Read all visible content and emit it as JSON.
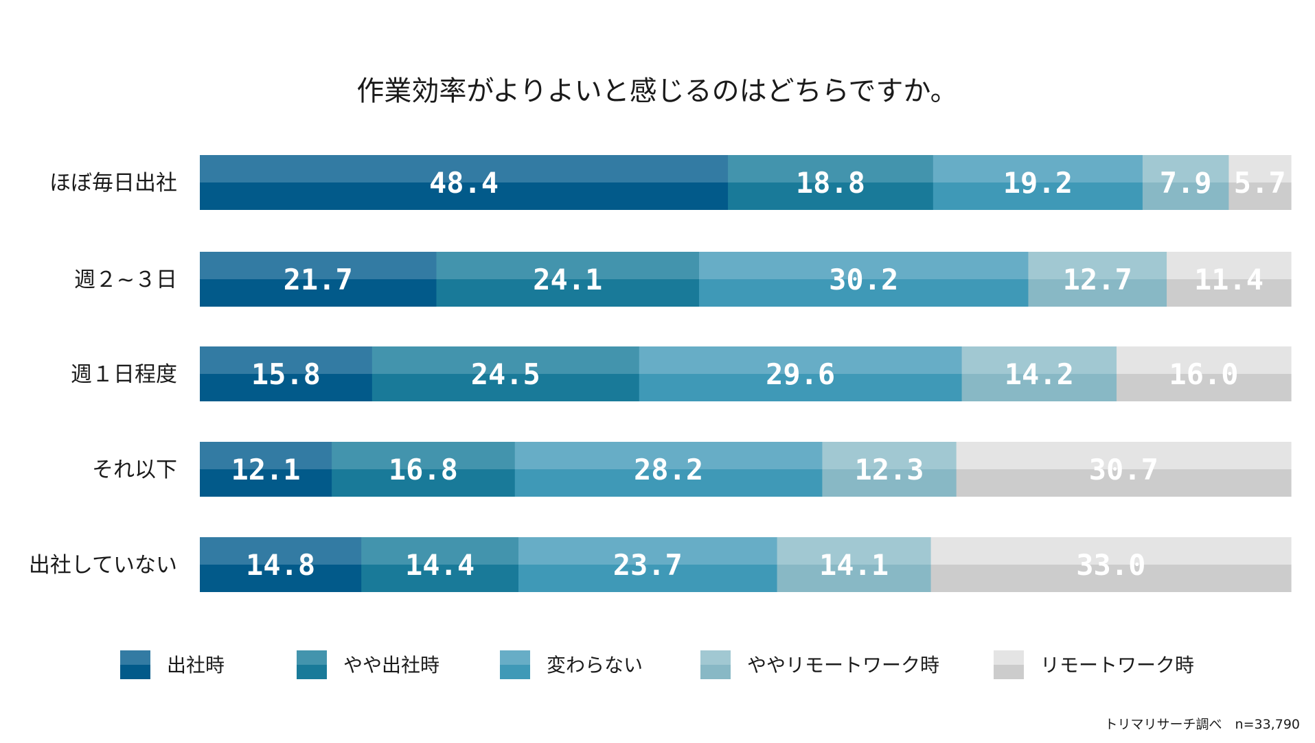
{
  "chart_data": {
    "type": "bar",
    "orientation": "horizontal",
    "stacked": true,
    "title": "作業効率がよりよいと感じるのはどちらですか。",
    "categories": [
      "ほぼ毎日出社",
      "週２~３日",
      "週１日程度",
      "それ以下",
      "出社していない"
    ],
    "series": [
      {
        "name": "出社時",
        "color_top": "#337ba3",
        "color_bottom": "#025a8a",
        "values": [
          48.4,
          21.7,
          15.8,
          12.1,
          14.8
        ]
      },
      {
        "name": "やや出社時",
        "color_top": "#4394ad",
        "color_bottom": "#197a99",
        "values": [
          18.8,
          24.1,
          24.5,
          16.8,
          14.4
        ]
      },
      {
        "name": "変わらない",
        "color_top": "#67adc6",
        "color_bottom": "#3f99b7",
        "values": [
          19.2,
          30.2,
          29.6,
          28.2,
          23.7
        ]
      },
      {
        "name": "ややリモートワーク時",
        "color_top": "#a1c8d2",
        "color_bottom": "#88b8c5",
        "values": [
          7.9,
          12.7,
          14.2,
          12.3,
          14.1
        ]
      },
      {
        "name": "リモートワーク時",
        "color_top": "#e4e4e4",
        "color_bottom": "#cccccc",
        "values": [
          5.7,
          11.4,
          16.0,
          30.7,
          33.0
        ]
      }
    ],
    "xlim": [
      0,
      100
    ],
    "grid": false,
    "legend_position": "bottom",
    "source_note": "トリマリサーチ調べ　n=33,790"
  }
}
